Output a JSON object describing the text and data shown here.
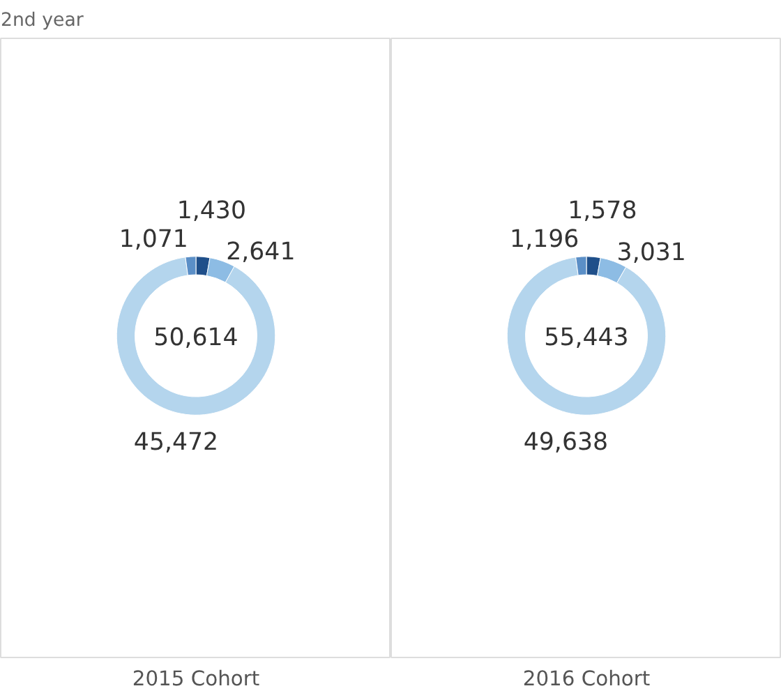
{
  "chart_data": [
    {
      "type": "donut",
      "title": "2nd year",
      "xlabel": "2015 Cohort",
      "categories": [
        null,
        null,
        null,
        null
      ],
      "values": [
        1430,
        2641,
        45472,
        1071
      ],
      "colors": [
        "#1f4f8a",
        "#8dbce4",
        "#b4d5ed",
        "#5b8fc7"
      ],
      "value_labels": [
        "1,430",
        "2,641",
        "45,472",
        "1,071"
      ],
      "annotations": [
        "50,614"
      ]
    },
    {
      "type": "donut",
      "xlabel": "2016 Cohort",
      "categories": [
        null,
        null,
        null,
        null
      ],
      "values": [
        1578,
        3031,
        49638,
        1196
      ],
      "colors": [
        "#1f4f8a",
        "#8dbce4",
        "#b4d5ed",
        "#5b8fc7"
      ],
      "value_labels": [
        "1,578",
        "3,031",
        "49,638",
        "1,196"
      ],
      "annotations": [
        "55,443"
      ]
    }
  ]
}
